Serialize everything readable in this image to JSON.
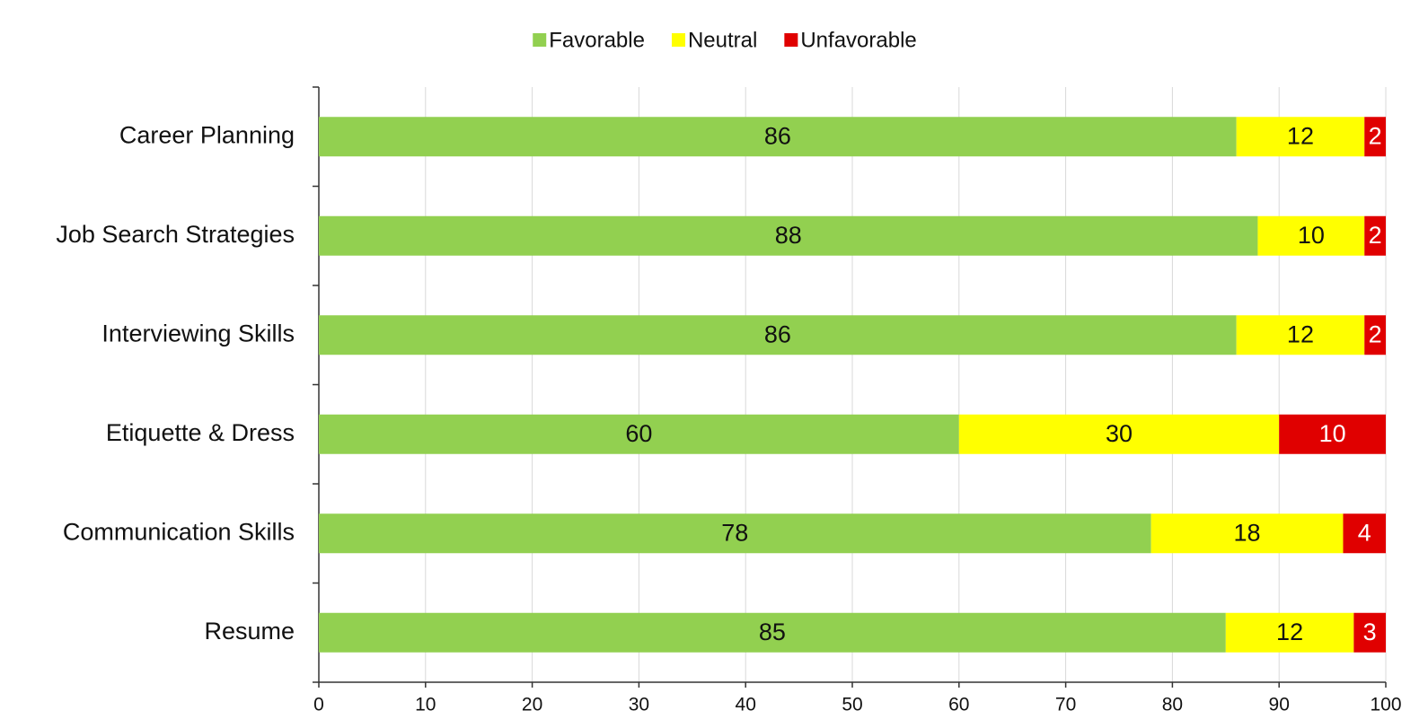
{
  "chart_data": {
    "type": "stacked_bar_horizontal",
    "categories": [
      "Career Planning",
      "Job Search Strategies",
      "Interviewing Skills",
      "Etiquette & Dress",
      "Communication Skills",
      "Resume"
    ],
    "series": [
      {
        "name": "Favorable",
        "color": "#92d050",
        "values": [
          86,
          88,
          86,
          60,
          78,
          85
        ]
      },
      {
        "name": "Neutral",
        "color": "#ffff00",
        "values": [
          12,
          10,
          12,
          30,
          18,
          12
        ]
      },
      {
        "name": "Unfavorable",
        "color": "#e00000",
        "values": [
          2,
          2,
          2,
          10,
          4,
          3
        ]
      }
    ],
    "xlim": [
      0,
      100
    ],
    "xticks": [
      0,
      10,
      20,
      30,
      40,
      50,
      60,
      70,
      80,
      90,
      100
    ],
    "grid": true,
    "legend": "top"
  }
}
